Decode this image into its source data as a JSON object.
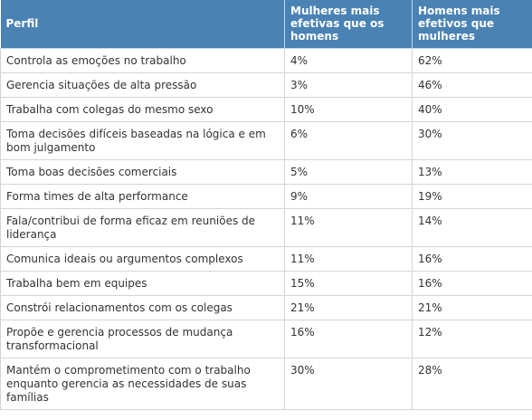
{
  "table": {
    "header": {
      "col1": "Perfil",
      "col2": "Mulheres mais efetivas que os homens",
      "col3": "Homens mais efetivos que mulheres"
    },
    "rows": [
      {
        "profile": "Controla as emoções no trabalho",
        "women": "4%",
        "men": "62%"
      },
      {
        "profile": "Gerencia situações de alta pressão",
        "women": "3%",
        "men": "46%"
      },
      {
        "profile": "Trabalha com colegas do mesmo sexo",
        "women": "10%",
        "men": "40%"
      },
      {
        "profile": "Toma decisões difíceis baseadas na lógica e em bom julgamento",
        "women": "6%",
        "men": "30%"
      },
      {
        "profile": "Toma boas decisões comerciais",
        "women": "5%",
        "men": "13%"
      },
      {
        "profile": "Forma times de alta performance",
        "women": "9%",
        "men": "19%"
      },
      {
        "profile": "Fala/contribui de forma eficaz em reuniões de liderança",
        "women": "11%",
        "men": "14%"
      },
      {
        "profile": "Comunica ideais ou argumentos complexos",
        "women": "11%",
        "men": "16%"
      },
      {
        "profile": "Trabalha bem em equipes",
        "women": "15%",
        "men": "16%"
      },
      {
        "profile": "Constrói relacionamentos com os colegas",
        "women": "21%",
        "men": "21%"
      },
      {
        "profile": "Propõe e gerencia processos de mudança transformacional",
        "women": "16%",
        "men": "12%"
      },
      {
        "profile": "Mantém o comprometimento com o trabalho enquanto gerencia as necessidades de suas famílias",
        "women": "30%",
        "men": "28%"
      }
    ]
  }
}
